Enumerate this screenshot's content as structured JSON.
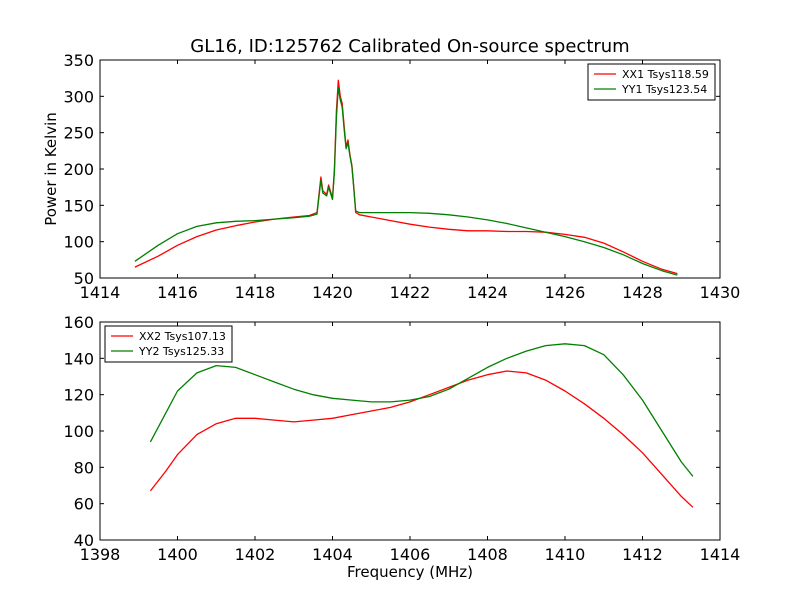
{
  "chart_data": [
    {
      "type": "line",
      "title": "GL16, ID:125762 Calibrated On-source spectrum",
      "xlabel": "",
      "ylabel": "Power in Kelvin",
      "xlim": [
        1414,
        1430
      ],
      "ylim": [
        50,
        350
      ],
      "xticks": [
        1414,
        1416,
        1418,
        1420,
        1422,
        1424,
        1426,
        1428,
        1430
      ],
      "yticks": [
        50,
        100,
        150,
        200,
        250,
        300,
        350
      ],
      "legend_position": "upper right",
      "series": [
        {
          "name": "XX1 Tsys118.59",
          "color": "#ff0000",
          "x": [
            1414.9,
            1415.5,
            1416.0,
            1416.5,
            1417.0,
            1417.5,
            1418.0,
            1418.5,
            1419.0,
            1419.4,
            1419.6,
            1419.7,
            1419.75,
            1419.85,
            1419.9,
            1420.0,
            1420.05,
            1420.1,
            1420.15,
            1420.2,
            1420.25,
            1420.3,
            1420.35,
            1420.4,
            1420.45,
            1420.5,
            1420.55,
            1420.6,
            1420.7,
            1421.0,
            1421.5,
            1422.0,
            1422.5,
            1423.0,
            1423.5,
            1424.0,
            1424.5,
            1425.0,
            1425.5,
            1426.0,
            1426.5,
            1427.0,
            1427.5,
            1428.0,
            1428.5,
            1428.9
          ],
          "y": [
            65,
            80,
            95,
            107,
            116,
            122,
            127,
            131,
            134,
            136,
            140,
            189,
            170,
            165,
            178,
            160,
            200,
            280,
            322,
            300,
            290,
            260,
            230,
            240,
            220,
            205,
            175,
            140,
            137,
            134,
            129,
            124,
            120,
            117,
            115,
            115,
            114,
            114,
            113,
            110,
            106,
            98,
            86,
            73,
            62,
            56
          ]
        },
        {
          "name": "YY1 Tsys123.54",
          "color": "#008000",
          "x": [
            1414.9,
            1415.5,
            1416.0,
            1416.5,
            1417.0,
            1417.5,
            1418.0,
            1418.5,
            1419.0,
            1419.4,
            1419.6,
            1419.7,
            1419.75,
            1419.85,
            1419.9,
            1420.0,
            1420.05,
            1420.1,
            1420.15,
            1420.2,
            1420.25,
            1420.3,
            1420.35,
            1420.4,
            1420.45,
            1420.5,
            1420.55,
            1420.6,
            1420.7,
            1421.0,
            1421.5,
            1422.0,
            1422.5,
            1423.0,
            1423.5,
            1424.0,
            1424.5,
            1425.0,
            1425.5,
            1426.0,
            1426.5,
            1427.0,
            1427.5,
            1428.0,
            1428.5,
            1428.9
          ],
          "y": [
            73,
            95,
            111,
            121,
            126,
            128,
            129,
            131,
            133,
            135,
            138,
            185,
            167,
            163,
            175,
            158,
            195,
            270,
            312,
            295,
            285,
            255,
            228,
            236,
            218,
            203,
            173,
            142,
            140,
            140,
            140,
            140,
            139,
            137,
            134,
            130,
            125,
            119,
            113,
            107,
            100,
            92,
            82,
            70,
            60,
            54
          ]
        }
      ]
    },
    {
      "type": "line",
      "title": "",
      "xlabel": "Frequency (MHz)",
      "ylabel": "",
      "xlim": [
        1398,
        1414
      ],
      "ylim": [
        40,
        160
      ],
      "xticks": [
        1398,
        1400,
        1402,
        1404,
        1406,
        1408,
        1410,
        1412,
        1414
      ],
      "yticks": [
        40,
        60,
        80,
        100,
        120,
        140,
        160
      ],
      "legend_position": "upper left",
      "series": [
        {
          "name": "XX2 Tsys107.13",
          "color": "#ff0000",
          "x": [
            1399.3,
            1399.7,
            1400.0,
            1400.5,
            1401.0,
            1401.5,
            1402.0,
            1402.5,
            1403.0,
            1403.5,
            1404.0,
            1404.5,
            1405.0,
            1405.5,
            1406.0,
            1406.5,
            1407.0,
            1407.5,
            1408.0,
            1408.5,
            1409.0,
            1409.5,
            1410.0,
            1410.5,
            1411.0,
            1411.5,
            1412.0,
            1412.5,
            1413.0,
            1413.3
          ],
          "y": [
            67,
            78,
            87,
            98,
            104,
            107,
            107,
            106,
            105,
            106,
            107,
            109,
            111,
            113,
            116,
            120,
            124,
            128,
            131,
            133,
            132,
            128,
            122,
            115,
            107,
            98,
            88,
            76,
            64,
            58
          ]
        },
        {
          "name": "YY2 Tsys125.33",
          "color": "#008000",
          "x": [
            1399.3,
            1399.7,
            1400.0,
            1400.5,
            1401.0,
            1401.5,
            1402.0,
            1402.5,
            1403.0,
            1403.5,
            1404.0,
            1404.5,
            1405.0,
            1405.5,
            1406.0,
            1406.5,
            1407.0,
            1407.5,
            1408.0,
            1408.5,
            1409.0,
            1409.5,
            1410.0,
            1410.5,
            1411.0,
            1411.5,
            1412.0,
            1412.5,
            1413.0,
            1413.3
          ],
          "y": [
            94,
            110,
            122,
            132,
            136,
            135,
            131,
            127,
            123,
            120,
            118,
            117,
            116,
            116,
            117,
            119,
            123,
            129,
            135,
            140,
            144,
            147,
            148,
            147,
            142,
            131,
            117,
            100,
            83,
            75
          ]
        }
      ]
    }
  ]
}
